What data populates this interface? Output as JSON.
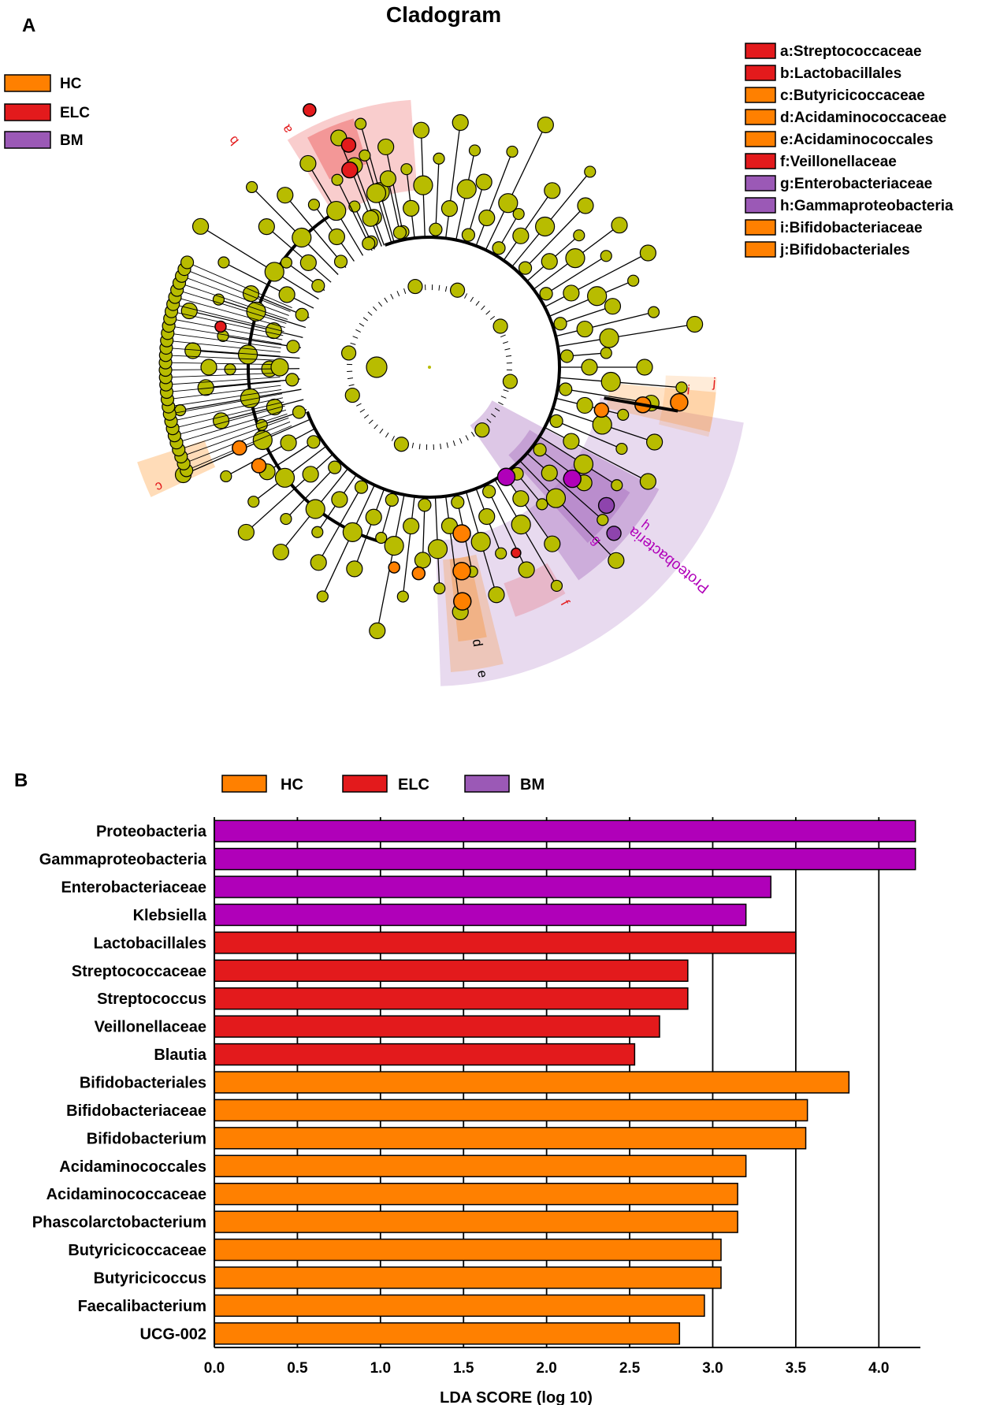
{
  "panel_a": {
    "label": "A",
    "title": "Cladogram",
    "group_legend": [
      {
        "name": "HC",
        "color": "#FF8000"
      },
      {
        "name": "ELC",
        "color": "#E31A1C"
      },
      {
        "name": "BM",
        "color": "#9B59B6"
      }
    ],
    "taxa_legend": [
      {
        "text": "a:Streptococcaceae",
        "color": "#E31A1C"
      },
      {
        "text": "b:Lactobacillales",
        "color": "#E31A1C"
      },
      {
        "text": "c:Butyricicoccaceae",
        "color": "#FF8000"
      },
      {
        "text": "d:Acidaminococcaceae",
        "color": "#FF8000"
      },
      {
        "text": "e:Acidaminococcales",
        "color": "#FF8000"
      },
      {
        "text": "f:Veillonellaceae",
        "color": "#E31A1C"
      },
      {
        "text": "g:Enterobacteriaceae",
        "color": "#9B59B6"
      },
      {
        "text": "h:Gammaproteobacteria",
        "color": "#9B59B6"
      },
      {
        "text": "i:Bifidobacteriaceae",
        "color": "#FF8000"
      },
      {
        "text": "j:Bifidobacteriales",
        "color": "#FF8000"
      }
    ],
    "highlight_labels": [
      "a",
      "b",
      "c",
      "d",
      "e",
      "f",
      "g",
      "h",
      "i",
      "j",
      "Proteobacteria"
    ],
    "node_color_default": "#B8BC00",
    "colors": {
      "HC": "#FF8000",
      "ELC": "#E31A1C",
      "BM": "#B000B9",
      "BM_dark": "#8E44AD"
    }
  },
  "panel_b": {
    "label": "B",
    "legend": [
      {
        "name": "HC",
        "color": "#FF8000"
      },
      {
        "name": "ELC",
        "color": "#E31A1C"
      },
      {
        "name": "BM",
        "color": "#9B59B6"
      }
    ]
  },
  "chart_data": {
    "type": "bar",
    "orientation": "horizontal",
    "title": "",
    "xlabel": "LDA SCORE (log 10)",
    "ylabel": "",
    "xlim": [
      0,
      4.25
    ],
    "xticks": [
      "0.0",
      "0.5",
      "1.0",
      "1.5",
      "2.0",
      "2.5",
      "3.0",
      "3.5",
      "4.0"
    ],
    "grid": true,
    "legend_position": "top",
    "series_colors": {
      "BM": "#B000B9",
      "ELC": "#E31A1C",
      "HC": "#FF8000"
    },
    "categories": [
      "Proteobacteria",
      "Gammaproteobacteria",
      "Enterobacteriaceae",
      "Klebsiella",
      "Lactobacillales",
      "Streptococcaceae",
      "Streptococcus",
      "Veillonellaceae",
      "Blautia",
      "Bifidobacteriales",
      "Bifidobacteriaceae",
      "Bifidobacterium",
      "Acidaminococcales",
      "Acidaminococcaceae",
      "Phascolarctobacterium",
      "Butyricicoccaceae",
      "Butyricicoccus",
      "Faecalibacterium",
      "UCG-002"
    ],
    "groups": [
      "BM",
      "BM",
      "BM",
      "BM",
      "ELC",
      "ELC",
      "ELC",
      "ELC",
      "ELC",
      "HC",
      "HC",
      "HC",
      "HC",
      "HC",
      "HC",
      "HC",
      "HC",
      "HC",
      "HC"
    ],
    "values": [
      4.22,
      4.22,
      3.35,
      3.2,
      3.5,
      2.85,
      2.85,
      2.68,
      2.53,
      3.82,
      3.57,
      3.56,
      3.2,
      3.15,
      3.15,
      3.05,
      3.05,
      2.95,
      2.8
    ]
  }
}
